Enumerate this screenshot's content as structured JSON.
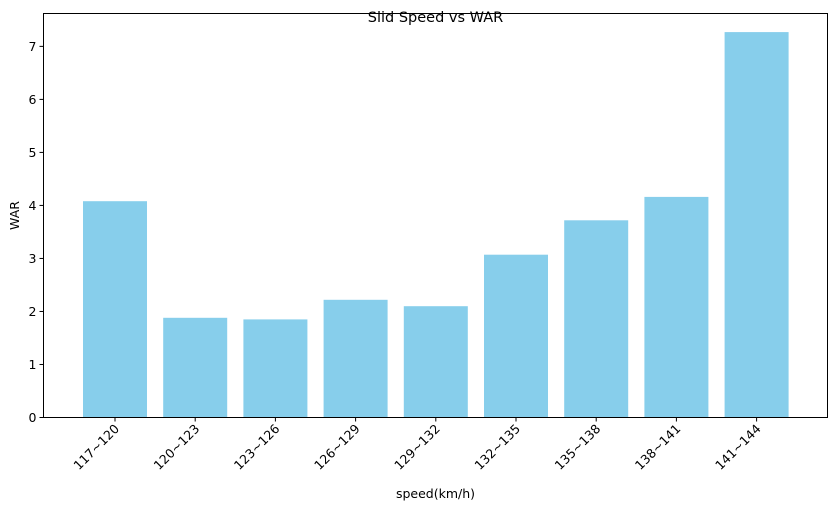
{
  "chart_data": {
    "type": "bar",
    "title": "Slid Speed vs WAR",
    "xlabel": "speed(km/h)",
    "ylabel": "WAR",
    "categories": [
      "117~120",
      "120~123",
      "123~126",
      "126~129",
      "129~132",
      "132~135",
      "135~138",
      "138~141",
      "141~144"
    ],
    "values": [
      4.08,
      1.88,
      1.85,
      2.22,
      2.1,
      3.07,
      3.72,
      4.16,
      7.27
    ],
    "ylim": [
      0,
      7.62
    ],
    "yticks": [
      0,
      1,
      2,
      3,
      4,
      5,
      6,
      7
    ],
    "bar_color": "#87CEEB",
    "grid": false
  }
}
